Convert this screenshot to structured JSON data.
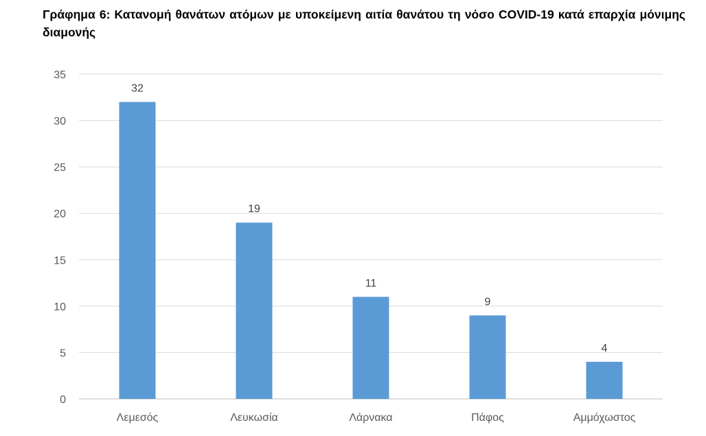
{
  "title": "Γράφημα 6: Κατανομή θανάτων ατόμων με υποκείμενη αιτία θανάτου τη νόσο COVID-19 κατά επαρχία μόνιμης διαμονής",
  "chart_data": {
    "type": "bar",
    "categories": [
      "Λεμεσός",
      "Λευκωσία",
      "Λάρνακα",
      "Πάφος",
      "Αμμόχωστος"
    ],
    "values": [
      32,
      19,
      11,
      9,
      4
    ],
    "title": "Γράφημα 6: Κατανομή θανάτων ατόμων με υποκείμενη αιτία θανάτου τη νόσο COVID-19 κατά επαρχία μόνιμης διαμονής",
    "xlabel": "",
    "ylabel": "",
    "ylim": [
      0,
      35
    ],
    "yticks": [
      0,
      5,
      10,
      15,
      20,
      25,
      30,
      35
    ],
    "grid": true,
    "legend": "none",
    "data_labels": true,
    "colors": {
      "bar": "#5B9BD5",
      "grid": "#D9D9D9",
      "axis": "#BFBFBF",
      "tick_text": "#595959",
      "data_label_text": "#404040"
    }
  }
}
